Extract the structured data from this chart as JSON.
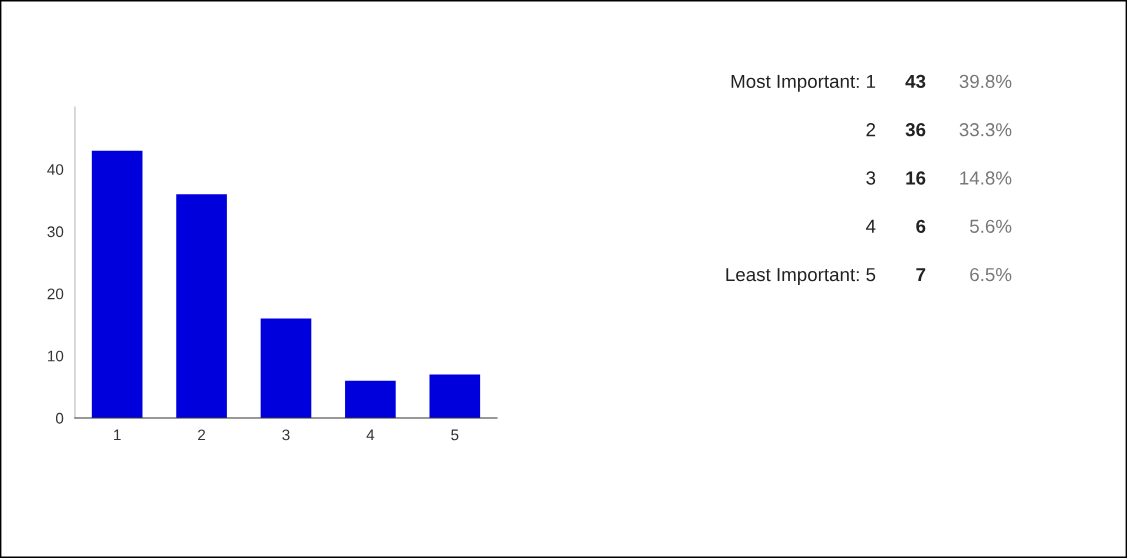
{
  "chart_data": {
    "type": "bar",
    "categories": [
      "1",
      "2",
      "3",
      "4",
      "5"
    ],
    "values": [
      43,
      36,
      16,
      6,
      7
    ],
    "color": "#0000dd",
    "ylim": [
      0,
      50
    ],
    "yticks": [
      0,
      10,
      20,
      30,
      40
    ],
    "grid": false,
    "legend": false,
    "annotations": [
      "Most Important: 1",
      "43",
      "39.8%",
      "2",
      "36",
      "33.3%",
      "3",
      "16",
      "14.8%",
      "4",
      "6",
      "5.6%",
      "Least Important: 5",
      "7",
      "6.5%"
    ]
  }
}
